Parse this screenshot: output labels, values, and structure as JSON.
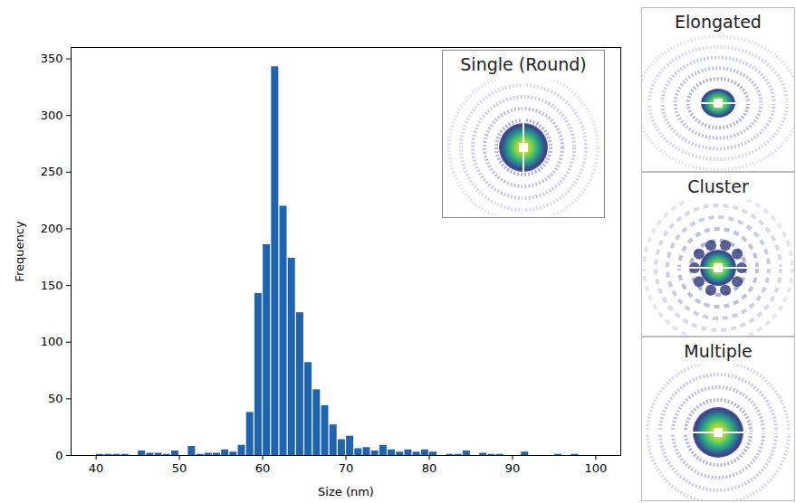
{
  "chart_data": {
    "type": "histogram",
    "xlabel": "Size (nm)",
    "ylabel": "Frequency",
    "bins": [
      40,
      41,
      42,
      43,
      44,
      45,
      46,
      47,
      48,
      49,
      50,
      51,
      52,
      53,
      54,
      55,
      56,
      57,
      58,
      59,
      60,
      61,
      62,
      63,
      64,
      65,
      66,
      67,
      68,
      69,
      70,
      71,
      72,
      73,
      74,
      75,
      76,
      77,
      78,
      79,
      80,
      81,
      82,
      83,
      84,
      85,
      86,
      87,
      88,
      89,
      90,
      91,
      92,
      93,
      94,
      95,
      96,
      97,
      98,
      99,
      100
    ],
    "values": [
      1,
      1,
      1,
      1,
      0,
      4,
      2,
      2,
      1,
      4,
      0,
      8,
      1,
      2,
      2,
      5,
      3,
      9,
      38,
      143,
      186,
      343,
      220,
      174,
      126,
      82,
      58,
      44,
      27,
      14,
      17,
      6,
      7,
      4,
      9,
      5,
      3,
      5,
      3,
      5,
      3,
      0,
      1,
      1,
      4,
      0,
      2,
      1,
      1,
      0,
      0,
      3,
      0,
      0,
      0,
      1,
      0,
      1,
      0,
      0
    ],
    "color": "#1f64b0",
    "xlim": [
      37,
      103
    ],
    "ylim": [
      0,
      360
    ],
    "xticks": [
      40,
      50,
      60,
      70,
      80,
      90,
      100
    ],
    "yticks": [
      0,
      50,
      100,
      150,
      200,
      250,
      300,
      350
    ],
    "grid": false
  },
  "inset_title": "Single (Round)",
  "side_panels": [
    "Elongated",
    "Cluster",
    "Multiple"
  ]
}
